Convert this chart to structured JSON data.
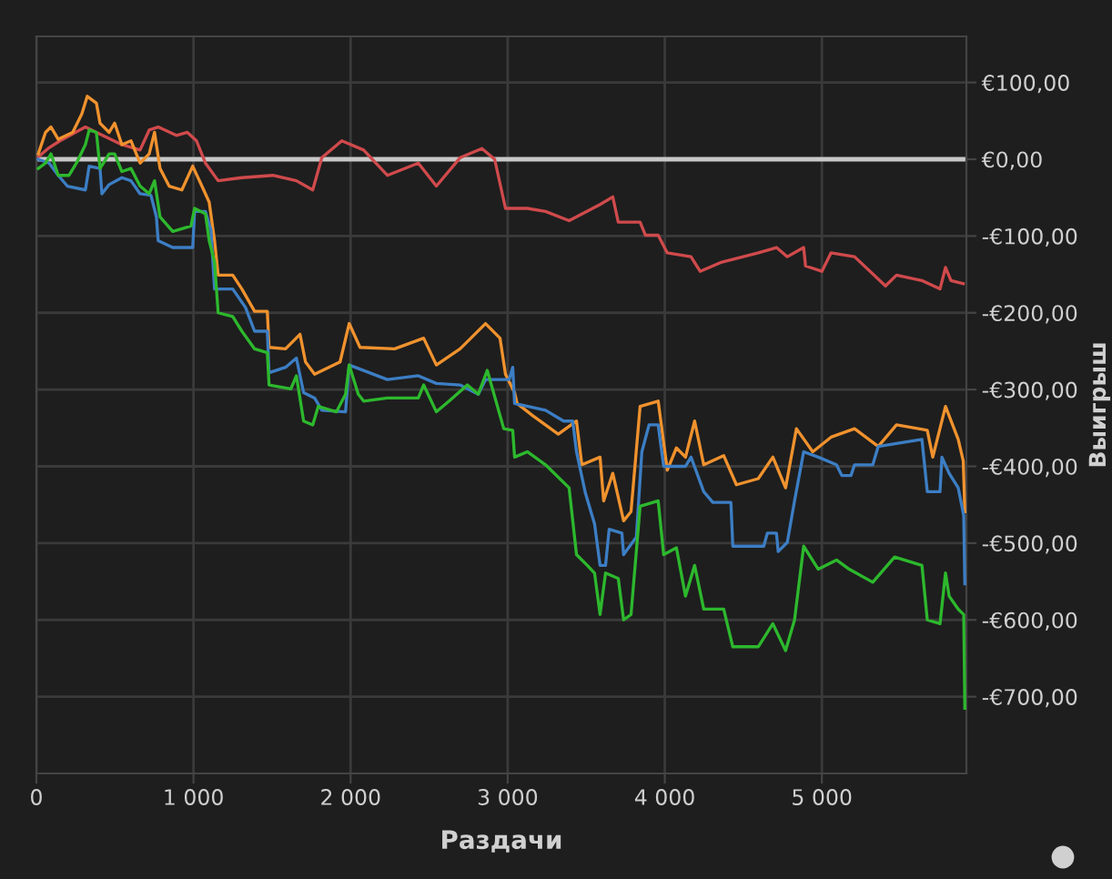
{
  "chart_data": {
    "type": "line",
    "xlabel": "Раздачи",
    "ylabel": "Выигрыш",
    "xlim": [
      0,
      5920
    ],
    "ylim": [
      -800,
      160
    ],
    "xticks": [
      {
        "value": 0,
        "label": "0"
      },
      {
        "value": 1000,
        "label": "1 000"
      },
      {
        "value": 2000,
        "label": "2 000"
      },
      {
        "value": 3000,
        "label": "3 000"
      },
      {
        "value": 4000,
        "label": "4 000"
      },
      {
        "value": 5000,
        "label": "5 000"
      }
    ],
    "yticks": [
      {
        "value": 100,
        "label": "€100,00"
      },
      {
        "value": 0,
        "label": "€0,00"
      },
      {
        "value": -100,
        "label": "-€100,00"
      },
      {
        "value": -200,
        "label": "-€200,00"
      },
      {
        "value": -300,
        "label": "-€300,00"
      },
      {
        "value": -400,
        "label": "-€400,00"
      },
      {
        "value": -500,
        "label": "-€500,00"
      },
      {
        "value": -600,
        "label": "-€600,00"
      },
      {
        "value": -700,
        "label": "-€700,00"
      }
    ],
    "grid": true,
    "ref_lines": [
      {
        "axis": "y",
        "value": 0,
        "color": "#c8c8c8"
      }
    ],
    "series": [
      {
        "color": "#d04a4c",
        "x": [
          12,
          81,
          150,
          312,
          382,
          544,
          660,
          718,
          775,
          891,
          961,
          1019,
          1076,
          1157,
          1308,
          1505,
          1655,
          1759,
          1817,
          1944,
          2083,
          2234,
          2431,
          2546,
          2697,
          2836,
          2917,
          2986,
          3125,
          3241,
          3391,
          3588,
          3669,
          3704,
          3843,
          3877,
          3958,
          4016,
          4167,
          4225,
          4363,
          4595,
          4711,
          4780,
          4884,
          4896,
          5000,
          5058,
          5208,
          5405,
          5475,
          5637,
          5752,
          5787,
          5822,
          5900
        ],
        "values": [
          3,
          15,
          24,
          42,
          35,
          19,
          12,
          38,
          42,
          31,
          35,
          24,
          -5,
          -28,
          -24,
          -21,
          -28,
          -40,
          2,
          24,
          12,
          -21,
          -5,
          -35,
          2,
          14,
          0,
          -64,
          -64,
          -68,
          -80,
          -59,
          -49,
          -82,
          -82,
          -99,
          -99,
          -122,
          -127,
          -146,
          -134,
          -122,
          -115,
          -127,
          -115,
          -139,
          -146,
          -122,
          -127,
          -165,
          -151,
          -158,
          -169,
          -141,
          -158,
          -162
        ]
      },
      {
        "color": "#f0922e",
        "x": [
          12,
          58,
          93,
          139,
          231,
          289,
          324,
          382,
          405,
          463,
          498,
          544,
          602,
          660,
          718,
          752,
          787,
          845,
          926,
          995,
          1065,
          1100,
          1134,
          1157,
          1250,
          1308,
          1389,
          1470,
          1481,
          1586,
          1678,
          1713,
          1771,
          1933,
          1991,
          2060,
          2280,
          2465,
          2546,
          2697,
          2859,
          2951,
          2986,
          3044,
          3060,
          3160,
          3322,
          3438,
          3472,
          3588,
          3611,
          3669,
          3738,
          3785,
          3843,
          3958,
          4016,
          4074,
          4132,
          4190,
          4248,
          4375,
          4456,
          4595,
          4688,
          4769,
          4838,
          4942,
          5058,
          5208,
          5359,
          5475,
          5671,
          5706,
          5787,
          5868,
          5900,
          5910
        ],
        "values": [
          7,
          35,
          42,
          26,
          35,
          59,
          82,
          73,
          47,
          35,
          47,
          19,
          24,
          -5,
          7,
          35,
          -12,
          -35,
          -40,
          -9,
          -40,
          -56,
          -106,
          -151,
          -151,
          -169,
          -198,
          -198,
          -245,
          -247,
          -228,
          -264,
          -280,
          -264,
          -214,
          -245,
          -247,
          -233,
          -268,
          -247,
          -214,
          -233,
          -280,
          -304,
          -318,
          -334,
          -358,
          -341,
          -398,
          -388,
          -445,
          -409,
          -471,
          -459,
          -322,
          -315,
          -405,
          -376,
          -388,
          -341,
          -398,
          -386,
          -424,
          -416,
          -388,
          -428,
          -351,
          -381,
          -362,
          -351,
          -374,
          -346,
          -353,
          -388,
          -322,
          -365,
          -393,
          -459
        ]
      },
      {
        "color": "#3c7ec4",
        "x": [
          12,
          81,
          139,
          197,
          312,
          336,
          405,
          417,
          463,
          544,
          602,
          660,
          729,
          764,
          775,
          868,
          995,
          1007,
          1076,
          1111,
          1134,
          1250,
          1331,
          1389,
          1470,
          1481,
          1586,
          1655,
          1701,
          1771,
          1817,
          1968,
          1991,
          2234,
          2431,
          2546,
          2697,
          2813,
          2859,
          3009,
          3032,
          3044,
          3241,
          3356,
          3414,
          3438,
          3495,
          3553,
          3588,
          3623,
          3646,
          3727,
          3738,
          3819,
          3854,
          3900,
          3958,
          3993,
          4132,
          4167,
          4248,
          4306,
          4421,
          4433,
          4630,
          4653,
          4711,
          4722,
          4780,
          4826,
          4884,
          4977,
          5093,
          5127,
          5185,
          5208,
          5324,
          5359,
          5637,
          5671,
          5752,
          5764,
          5810,
          5868,
          5903,
          5910
        ],
        "values": [
          0,
          -5,
          -21,
          -35,
          -40,
          -9,
          -12,
          -45,
          -33,
          -24,
          -28,
          -45,
          -47,
          -75,
          -106,
          -115,
          -115,
          -68,
          -68,
          -92,
          -169,
          -169,
          -193,
          -224,
          -224,
          -278,
          -271,
          -259,
          -304,
          -311,
          -327,
          -329,
          -268,
          -287,
          -282,
          -292,
          -294,
          -306,
          -287,
          -287,
          -271,
          -318,
          -327,
          -341,
          -341,
          -381,
          -435,
          -475,
          -529,
          -529,
          -482,
          -487,
          -515,
          -492,
          -381,
          -346,
          -346,
          -400,
          -400,
          -388,
          -433,
          -447,
          -447,
          -504,
          -504,
          -487,
          -487,
          -511,
          -499,
          -445,
          -381,
          -388,
          -398,
          -412,
          -412,
          -398,
          -398,
          -374,
          -365,
          -433,
          -433,
          -388,
          -409,
          -428,
          -464,
          -553
        ]
      },
      {
        "color": "#2db82d",
        "x": [
          12,
          58,
          93,
          139,
          208,
          255,
          312,
          336,
          382,
          405,
          463,
          498,
          544,
          602,
          660,
          718,
          752,
          787,
          868,
          984,
          1007,
          1076,
          1100,
          1134,
          1157,
          1250,
          1308,
          1389,
          1470,
          1481,
          1620,
          1655,
          1701,
          1759,
          1794,
          1910,
          1968,
          1991,
          2049,
          2083,
          2234,
          2431,
          2465,
          2546,
          2627,
          2743,
          2813,
          2870,
          2975,
          3032,
          3044,
          3125,
          3241,
          3391,
          3438,
          3507,
          3553,
          3588,
          3623,
          3704,
          3738,
          3785,
          3843,
          3958,
          3993,
          4074,
          4132,
          4190,
          4248,
          4375,
          4433,
          4595,
          4688,
          4769,
          4826,
          4884,
          4977,
          5093,
          5174,
          5324,
          5463,
          5637,
          5671,
          5752,
          5787,
          5810,
          5868,
          5903,
          5910
        ],
        "values": [
          -12,
          -5,
          7,
          -21,
          -21,
          -5,
          19,
          38,
          35,
          -12,
          7,
          7,
          -16,
          -12,
          -35,
          -45,
          -28,
          -75,
          -94,
          -87,
          -64,
          -71,
          -106,
          -134,
          -200,
          -205,
          -224,
          -247,
          -252,
          -294,
          -299,
          -282,
          -341,
          -346,
          -322,
          -329,
          -306,
          -268,
          -306,
          -315,
          -311,
          -311,
          -294,
          -329,
          -315,
          -294,
          -306,
          -275,
          -351,
          -353,
          -388,
          -381,
          -398,
          -428,
          -515,
          -529,
          -539,
          -593,
          -539,
          -546,
          -600,
          -593,
          -452,
          -445,
          -515,
          -506,
          -569,
          -529,
          -586,
          -586,
          -635,
          -635,
          -605,
          -640,
          -600,
          -504,
          -534,
          -522,
          -534,
          -551,
          -518,
          -529,
          -600,
          -605,
          -539,
          -569,
          -586,
          -593,
          -715
        ]
      }
    ]
  }
}
